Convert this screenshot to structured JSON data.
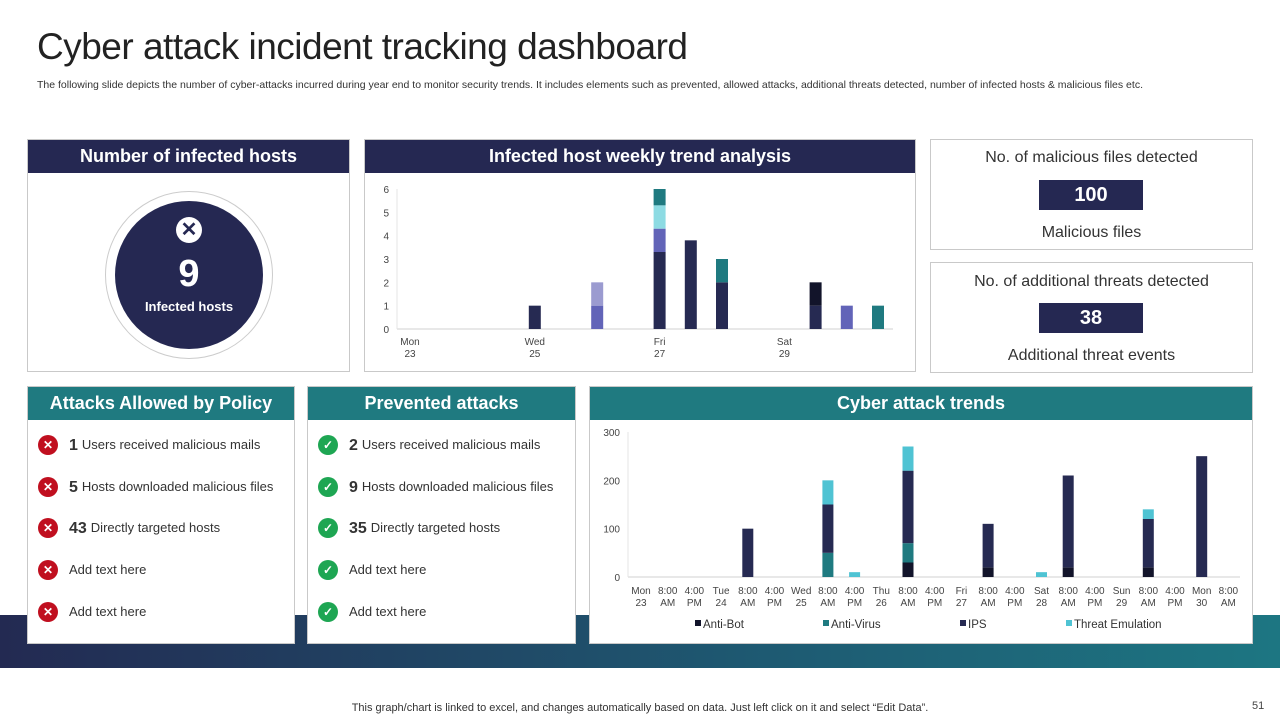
{
  "header": {
    "title": "Cyber attack incident tracking dashboard",
    "subtitle": "The following slide depicts the number of cyber-attacks incurred during year end to monitor security trends. It includes elements such as prevented, allowed attacks, additional threats detected, number of infected hosts & malicious files etc."
  },
  "infected": {
    "title": "Number of infected hosts",
    "icon": "x-circle-icon",
    "count": "9",
    "label": "Infected hosts"
  },
  "malicious": {
    "title": "No. of malicious files detected",
    "value": "100",
    "label": "Malicious files"
  },
  "threats": {
    "title": "No. of additional threats detected",
    "value": "38",
    "label": "Additional threat events"
  },
  "allowed": {
    "title": "Attacks Allowed by Policy",
    "items": [
      {
        "num": "1",
        "text": "Users received  malicious mails"
      },
      {
        "num": "5",
        "text": "Hosts downloaded  malicious files"
      },
      {
        "num": "43",
        "text": "Directly targeted hosts"
      },
      {
        "num": "",
        "text": "Add text here"
      },
      {
        "num": "",
        "text": "Add text here"
      }
    ]
  },
  "prevented": {
    "title": "Prevented attacks",
    "items": [
      {
        "num": "2",
        "text": "Users received  malicious mails"
      },
      {
        "num": "9",
        "text": "Hosts downloaded  malicious files"
      },
      {
        "num": "35",
        "text": "Directly targeted hosts"
      },
      {
        "num": "",
        "text": "Add text here"
      },
      {
        "num": "",
        "text": "Add text here"
      }
    ]
  },
  "colors": {
    "navy": "#252852",
    "teal": "#1f7a80",
    "red": "#c00f1f",
    "green": "#1ea653"
  },
  "footer": {
    "note": "This graph/chart is linked to excel, and changes automatically based on data. Just left click on it and select “Edit Data”.",
    "page": "51"
  },
  "chart_data": [
    {
      "type": "bar",
      "stacked": true,
      "title": "Infected host weekly trend analysis",
      "xlabel": "",
      "ylabel": "",
      "ylim": [
        0,
        6
      ],
      "yticks": [
        0,
        1,
        2,
        3,
        4,
        5,
        6
      ],
      "grid": false,
      "legend": "none",
      "categories": [
        "Mon 23",
        "",
        "",
        "",
        "Wed 25",
        "",
        "",
        "",
        "Fri 27",
        "",
        "",
        "",
        "Sat 29",
        "",
        "",
        ""
      ],
      "series": [
        {
          "color": "#262a52",
          "values": [
            0,
            0,
            0,
            0,
            1,
            0,
            0,
            0,
            3.3,
            3.8,
            2,
            0,
            0,
            1,
            0,
            0
          ]
        },
        {
          "color": "#6264b8",
          "values": [
            0,
            0,
            0,
            0,
            0,
            0,
            1,
            0,
            1,
            0,
            0,
            0,
            0,
            0,
            1,
            0
          ]
        },
        {
          "color": "#9b9bd0",
          "values": [
            0,
            0,
            0,
            0,
            0,
            0,
            1,
            0,
            0,
            0,
            0,
            0,
            0,
            0,
            0,
            0
          ]
        },
        {
          "color": "#8ddbe3",
          "values": [
            0,
            0,
            0,
            0,
            0,
            0,
            0,
            0,
            1,
            0,
            0,
            0,
            0,
            0,
            0,
            0
          ]
        },
        {
          "color": "#1f7a80",
          "values": [
            0,
            0,
            0,
            0,
            0,
            0,
            0,
            0,
            0.7,
            0,
            1,
            0,
            0,
            0,
            0,
            1
          ]
        },
        {
          "color": "#12142a",
          "values": [
            0,
            0,
            0,
            0,
            0,
            0,
            0,
            0,
            0,
            0,
            0,
            0,
            0,
            1,
            0,
            0
          ]
        }
      ]
    },
    {
      "type": "bar",
      "stacked": true,
      "title": "Cyber attack trends",
      "xlabel": "",
      "ylabel": "",
      "ylim": [
        0,
        300
      ],
      "yticks": [
        0,
        100,
        200,
        300
      ],
      "grid": false,
      "legend": "bottom",
      "categories": [
        "Mon 23",
        "8:00 AM",
        "4:00 PM",
        "Tue 24",
        "8:00 AM",
        "4:00 PM",
        "Wed 25",
        "8:00 AM",
        "4:00 PM",
        "Thu 26",
        "8:00 AM",
        "4:00 PM",
        "Fri 27",
        "8:00 AM",
        "4:00 PM",
        "Sat 28",
        "8:00 AM",
        "4:00 PM",
        "Sun 29",
        "8:00 AM",
        "4:00 PM",
        "Mon 30",
        "8:00 AM"
      ],
      "series": [
        {
          "name": "Anti-Bot",
          "color": "#12142a",
          "values": [
            0,
            0,
            0,
            0,
            0,
            0,
            0,
            0,
            0,
            0,
            30,
            0,
            0,
            20,
            0,
            0,
            20,
            0,
            0,
            20,
            0,
            0,
            0
          ]
        },
        {
          "name": "Anti-Virus",
          "color": "#1f7a80",
          "values": [
            0,
            0,
            0,
            0,
            0,
            0,
            0,
            50,
            0,
            0,
            40,
            0,
            0,
            0,
            0,
            0,
            0,
            0,
            0,
            0,
            0,
            0,
            0
          ]
        },
        {
          "name": "IPS",
          "color": "#262a52",
          "values": [
            0,
            0,
            0,
            0,
            100,
            0,
            0,
            100,
            0,
            0,
            150,
            0,
            0,
            90,
            0,
            0,
            190,
            0,
            0,
            100,
            0,
            250,
            0
          ]
        },
        {
          "name": "Threat Emulation",
          "color": "#4fc3d3",
          "values": [
            0,
            0,
            0,
            0,
            0,
            0,
            0,
            50,
            10,
            0,
            50,
            0,
            0,
            0,
            0,
            10,
            0,
            0,
            0,
            20,
            0,
            0,
            0
          ]
        }
      ]
    }
  ]
}
